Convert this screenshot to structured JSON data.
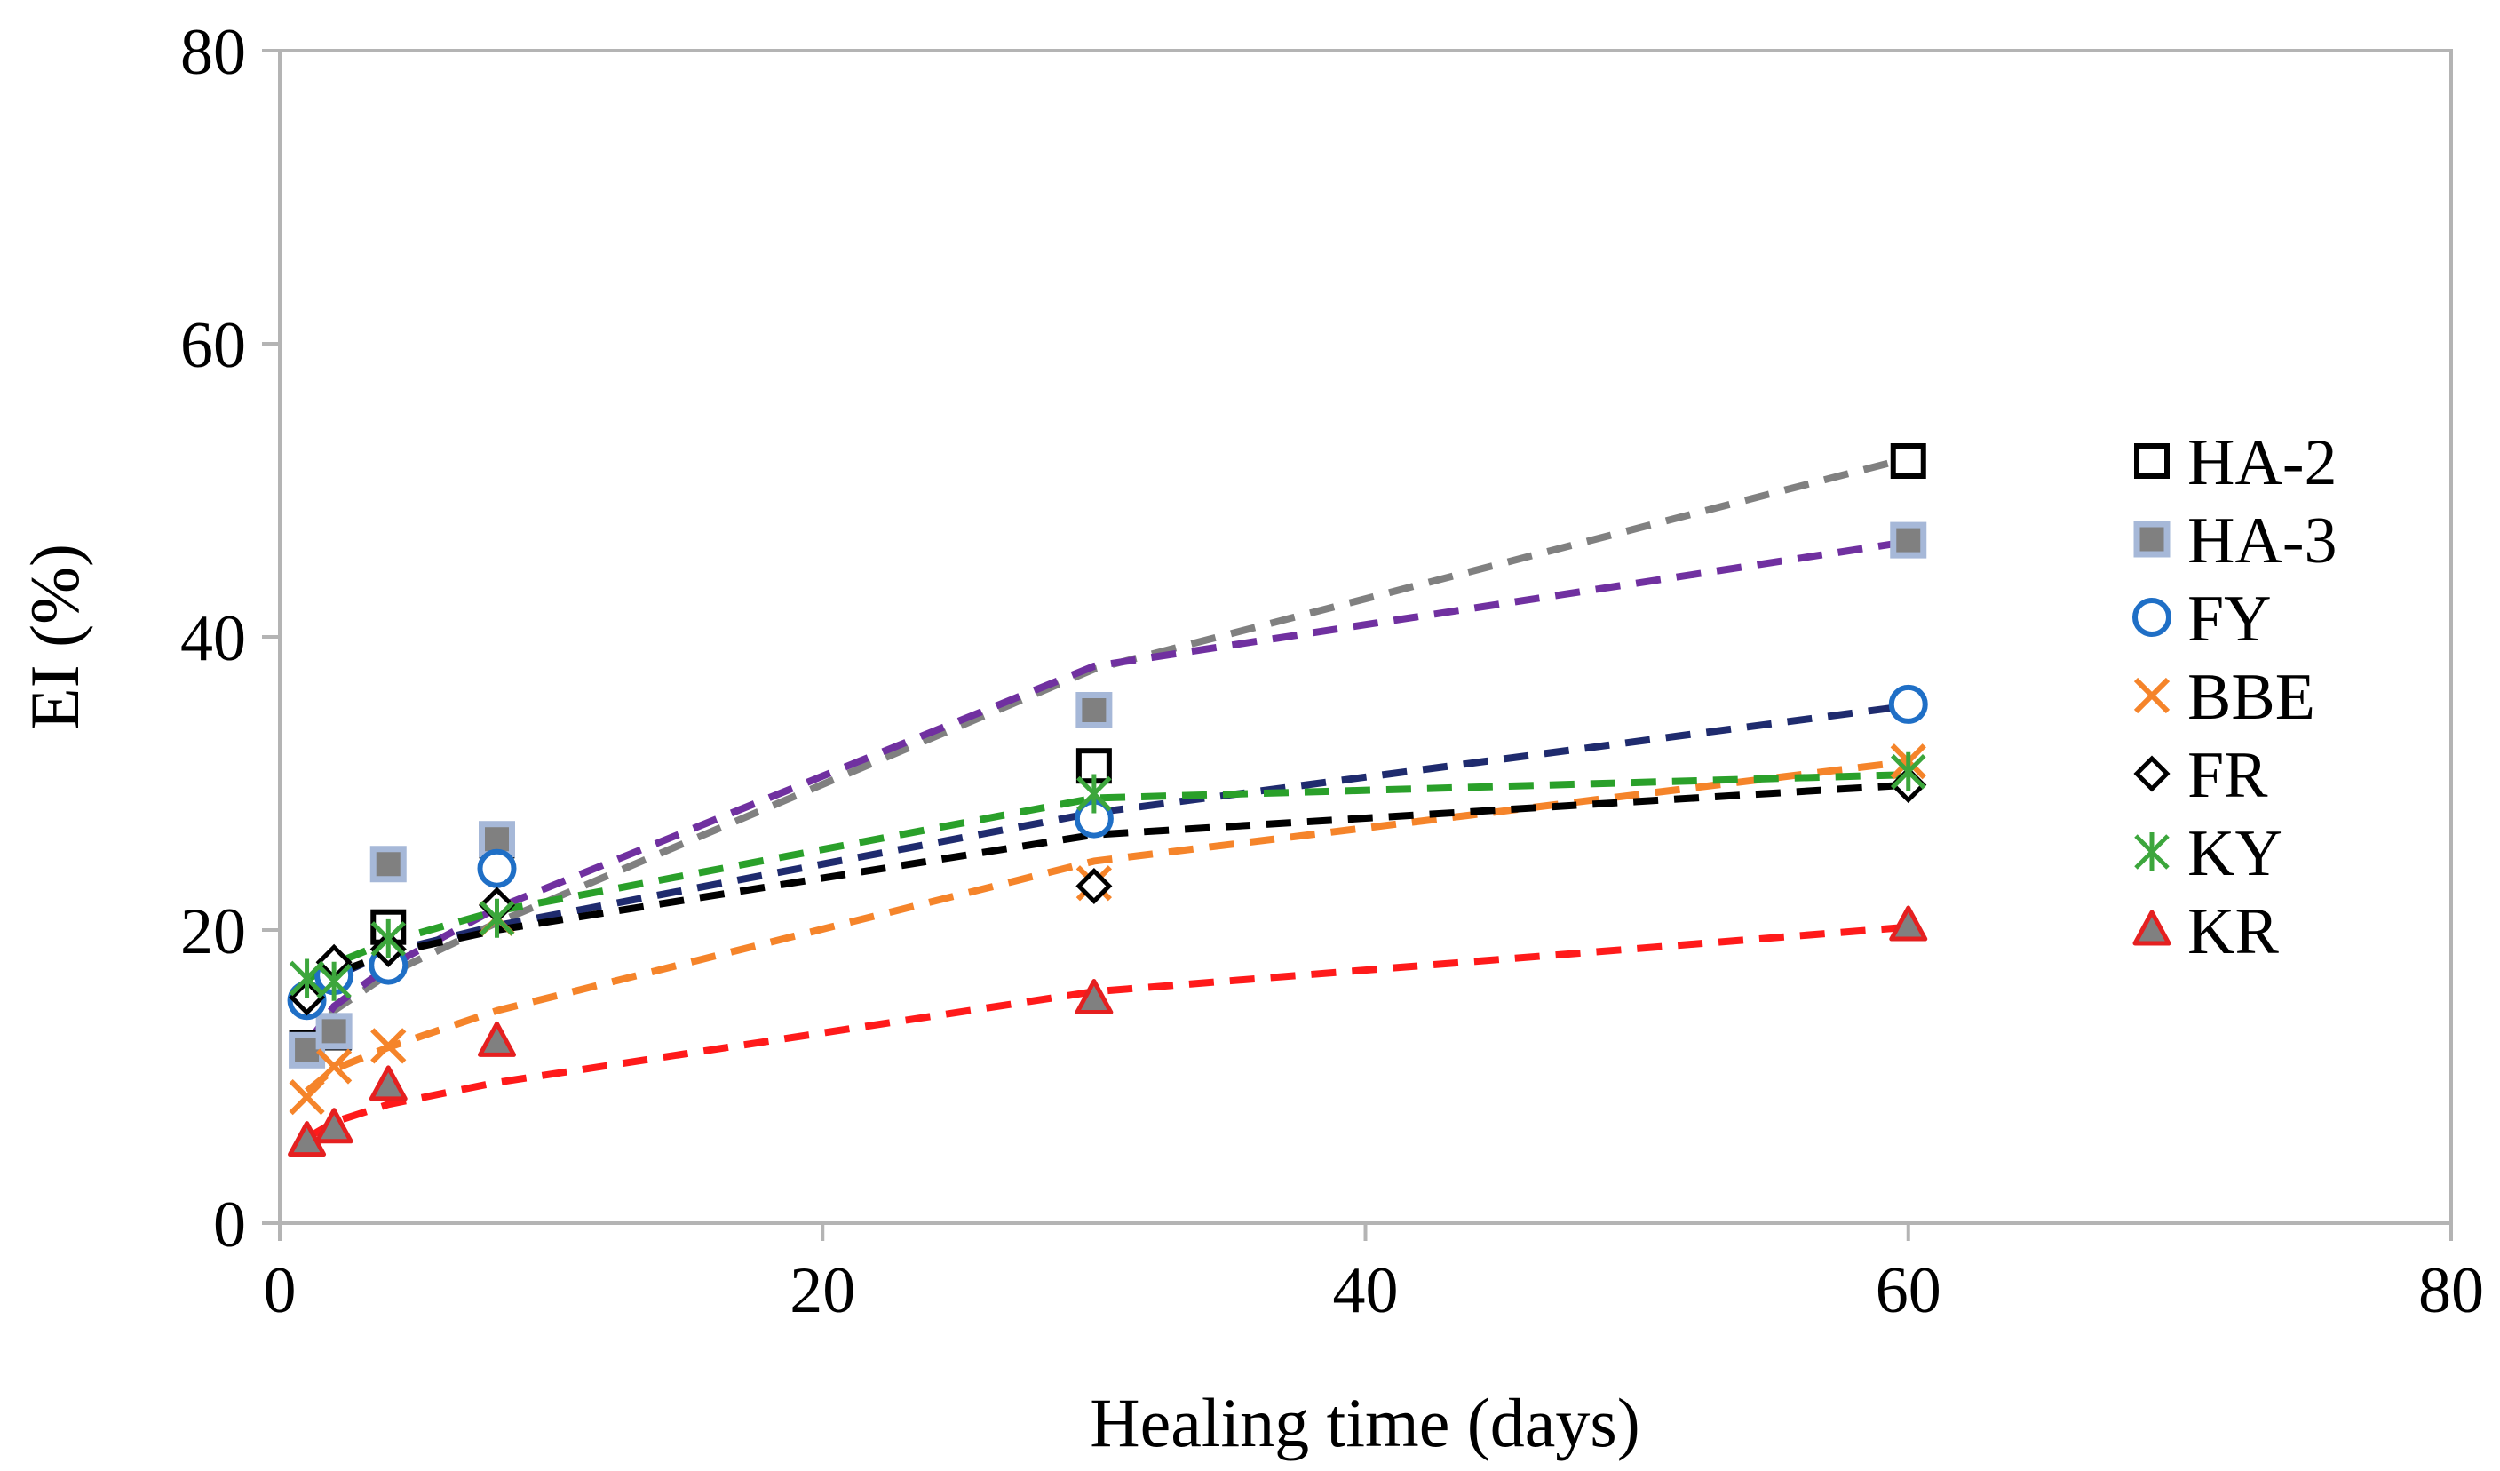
{
  "chart_data": {
    "type": "scatter",
    "title": "",
    "xlabel": "Healing time (days)",
    "ylabel": "EI (%)",
    "xlim": [
      0,
      80
    ],
    "ylim": [
      0,
      80
    ],
    "xticks": [
      "0",
      "20",
      "40",
      "60",
      "80"
    ],
    "yticks": [
      "0",
      "20",
      "40",
      "60",
      "80"
    ],
    "grid": false,
    "legend_position": "right",
    "x": [
      1,
      2,
      4,
      8,
      30,
      60
    ],
    "series": [
      {
        "name": "HA-2",
        "marker": "square-open",
        "color": "#000000",
        "values": [
          12,
          13,
          20.2,
          26.1,
          31.2,
          52
        ],
        "trend_color": "#808080",
        "trend": [
          12,
          14.5,
          17,
          20.5,
          37.8,
          52.2
        ]
      },
      {
        "name": "HA-3",
        "marker": "square-filled",
        "color": "#808080",
        "edge": "#a6b8d8",
        "values": [
          11.8,
          13.1,
          24.5,
          26.2,
          35,
          46.6
        ],
        "trend_color": "#7030a0",
        "trend": [
          12.2,
          14.8,
          17.5,
          21.5,
          38,
          46.5
        ]
      },
      {
        "name": "FY",
        "marker": "circle-open",
        "color": "#1f6fc6",
        "values": [
          15.2,
          16.9,
          17.6,
          24.2,
          27.6,
          35.4
        ],
        "trend_color": "#1f2b6e",
        "trend": [
          15.5,
          16.8,
          18.5,
          20.3,
          28,
          35.3
        ]
      },
      {
        "name": "BBE",
        "marker": "x",
        "color": "#f5842a",
        "values": [
          8.6,
          10.7,
          12.1,
          20.8,
          23.2,
          31.5
        ],
        "trend_color": "#f5842a",
        "trend": [
          9,
          10.5,
          12,
          14.5,
          24.7,
          31.5
        ]
      },
      {
        "name": "FR",
        "marker": "diamond-open",
        "color": "#000000",
        "values": [
          15.4,
          17.8,
          18.7,
          21.7,
          23,
          29.9
        ],
        "trend_color": "#000000",
        "trend": [
          15.6,
          17,
          18.4,
          20,
          26.5,
          29.9
        ]
      },
      {
        "name": "KY",
        "marker": "star",
        "color": "#3ca63c",
        "values": [
          16.7,
          16.5,
          19.4,
          20.8,
          29.3,
          30.8
        ],
        "trend_color": "#2aa02a",
        "trend": [
          16.6,
          17.7,
          19.2,
          21.3,
          29,
          30.6
        ]
      },
      {
        "name": "KR",
        "marker": "triangle-filled",
        "color": "#808080",
        "edge": "#e52020",
        "values": [
          5.6,
          6.5,
          9.4,
          12.4,
          15.3,
          20.3
        ],
        "trend_color": "#ff1a1a",
        "trend": [
          5.8,
          6.9,
          8.1,
          9.6,
          15.8,
          20.2
        ]
      }
    ]
  }
}
